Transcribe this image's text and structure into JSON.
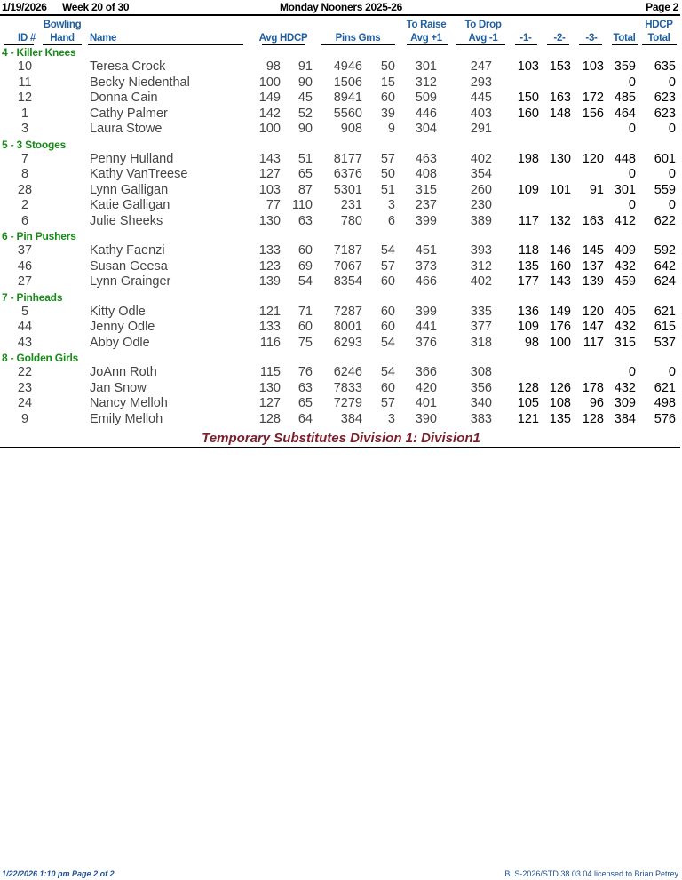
{
  "header": {
    "date": "1/19/2026",
    "week": "Week 20 of 30",
    "title": "Monday Nooners 2025-26",
    "page": "Page 2"
  },
  "columns": {
    "id": "ID #",
    "hand_top": "Bowling",
    "hand": "Hand",
    "name": "Name",
    "avg_hdcp": "Avg HDCP",
    "pins_gms": "Pins  Gms",
    "raise_top": "To Raise",
    "raise": "Avg +1",
    "drop_top": "To Drop",
    "drop": "Avg -1",
    "g1": "-1-",
    "g2": "-2-",
    "g3": "-3-",
    "total": "Total",
    "hdcp_total_top": "HDCP",
    "hdcp_total": "Total"
  },
  "teams": [
    {
      "name": "4 - Killer Knees",
      "bowlers": [
        [
          "10",
          "Teresa Crock",
          "98",
          "91",
          "4946",
          "50",
          "301",
          "247",
          "103",
          "153",
          "103",
          "359",
          "635"
        ],
        [
          "11",
          "Becky Niedenthal",
          "100",
          "90",
          "1506",
          "15",
          "312",
          "293",
          "",
          "",
          "",
          "0",
          "0"
        ],
        [
          "12",
          "Donna Cain",
          "149",
          "45",
          "8941",
          "60",
          "509",
          "445",
          "150",
          "163",
          "172",
          "485",
          "623"
        ],
        [
          "1",
          "Cathy Palmer",
          "142",
          "52",
          "5560",
          "39",
          "446",
          "403",
          "160",
          "148",
          "156",
          "464",
          "623"
        ],
        [
          "3",
          "Laura Stowe",
          "100",
          "90",
          "908",
          "9",
          "304",
          "291",
          "",
          "",
          "",
          "0",
          "0"
        ]
      ]
    },
    {
      "name": "5 - 3 Stooges",
      "bowlers": [
        [
          "7",
          "Penny Hulland",
          "143",
          "51",
          "8177",
          "57",
          "463",
          "402",
          "198",
          "130",
          "120",
          "448",
          "601"
        ],
        [
          "8",
          "Kathy VanTreese",
          "127",
          "65",
          "6376",
          "50",
          "408",
          "354",
          "",
          "",
          "",
          "0",
          "0"
        ],
        [
          "28",
          "Lynn Galligan",
          "103",
          "87",
          "5301",
          "51",
          "315",
          "260",
          "109",
          "101",
          "91",
          "301",
          "559"
        ],
        [
          "2",
          "Katie Galligan",
          "77",
          "110",
          "231",
          "3",
          "237",
          "230",
          "",
          "",
          "",
          "0",
          "0"
        ],
        [
          "6",
          "Julie Sheeks",
          "130",
          "63",
          "780",
          "6",
          "399",
          "389",
          "117",
          "132",
          "163",
          "412",
          "622"
        ]
      ]
    },
    {
      "name": "6 - Pin Pushers",
      "bowlers": [
        [
          "37",
          "Kathy Faenzi",
          "133",
          "60",
          "7187",
          "54",
          "451",
          "393",
          "118",
          "146",
          "145",
          "409",
          "592"
        ],
        [
          "46",
          "Susan Geesa",
          "123",
          "69",
          "7067",
          "57",
          "373",
          "312",
          "135",
          "160",
          "137",
          "432",
          "642"
        ],
        [
          "27",
          "Lynn Grainger",
          "139",
          "54",
          "8354",
          "60",
          "466",
          "402",
          "177",
          "143",
          "139",
          "459",
          "624"
        ]
      ]
    },
    {
      "name": "7 - Pinheads",
      "bowlers": [
        [
          "5",
          "Kitty Odle",
          "121",
          "71",
          "7287",
          "60",
          "399",
          "335",
          "136",
          "149",
          "120",
          "405",
          "621"
        ],
        [
          "44",
          "Jenny Odle",
          "133",
          "60",
          "8001",
          "60",
          "441",
          "377",
          "109",
          "176",
          "147",
          "432",
          "615"
        ],
        [
          "43",
          "Abby Odle",
          "116",
          "75",
          "6293",
          "54",
          "376",
          "318",
          "98",
          "100",
          "117",
          "315",
          "537"
        ]
      ]
    },
    {
      "name": "8 - Golden Girls",
      "bowlers": [
        [
          "22",
          "JoAnn Roth",
          "115",
          "76",
          "6246",
          "54",
          "366",
          "308",
          "",
          "",
          "",
          "0",
          "0"
        ],
        [
          "23",
          "Jan Snow",
          "130",
          "63",
          "7833",
          "60",
          "420",
          "356",
          "128",
          "126",
          "178",
          "432",
          "621"
        ],
        [
          "24",
          "Nancy Melloh",
          "127",
          "65",
          "7279",
          "57",
          "401",
          "340",
          "105",
          "108",
          "96",
          "309",
          "498"
        ],
        [
          "9",
          "Emily Melloh",
          "128",
          "64",
          "384",
          "3",
          "390",
          "383",
          "121",
          "135",
          "128",
          "384",
          "576"
        ]
      ]
    }
  ],
  "subtitle": "Temporary Substitutes   Division 1: Division1",
  "footer": {
    "left": "1/22/2026  1:10 pm  Page 2 of 2",
    "right": "BLS-2026/STD 38.03.04 licensed to Brian Petrey"
  }
}
